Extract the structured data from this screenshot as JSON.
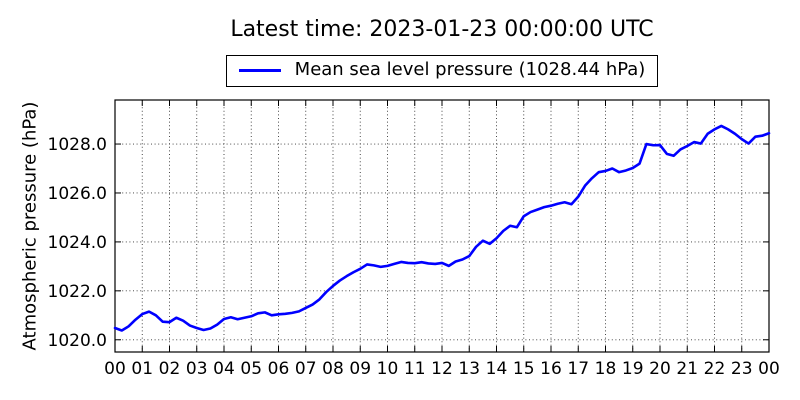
{
  "title": "Latest time: 2023-01-23 00:00:00 UTC",
  "legend": {
    "label": "Mean sea level pressure (1028.44 hPa)",
    "line_color": "#0000ff"
  },
  "latest_pressure_hpa": 1028.44,
  "chart_data": {
    "type": "line",
    "title": "Latest time: 2023-01-23 00:00:00 UTC",
    "xlabel": "",
    "ylabel": "Atmospheric pressure (hPa)",
    "xlim": [
      0,
      24
    ],
    "ylim": [
      1019.5,
      1029.8
    ],
    "grid": true,
    "grid_style": "dotted",
    "legend_position": "upper center above axes",
    "x_ticks": [
      0,
      1,
      2,
      3,
      4,
      5,
      6,
      7,
      8,
      9,
      10,
      11,
      12,
      13,
      14,
      15,
      16,
      17,
      18,
      19,
      20,
      21,
      22,
      23,
      24
    ],
    "x_tick_labels": [
      "00",
      "01",
      "02",
      "03",
      "04",
      "05",
      "06",
      "07",
      "08",
      "09",
      "10",
      "11",
      "12",
      "13",
      "14",
      "15",
      "16",
      "17",
      "18",
      "19",
      "20",
      "21",
      "22",
      "23",
      "00"
    ],
    "y_ticks": [
      1020,
      1022,
      1024,
      1026,
      1028
    ],
    "y_tick_labels": [
      "1020.0",
      "1022.0",
      "1024.0",
      "1026.0",
      "1028.0"
    ],
    "series": [
      {
        "name": "Mean sea level pressure (1028.44 hPa)",
        "color": "#0000ff",
        "line_width": 2.6,
        "x": [
          0,
          0.25,
          0.5,
          0.75,
          1,
          1.25,
          1.5,
          1.75,
          2,
          2.25,
          2.5,
          2.75,
          3,
          3.25,
          3.5,
          3.75,
          4,
          4.25,
          4.5,
          4.75,
          5,
          5.25,
          5.5,
          5.75,
          6,
          6.25,
          6.5,
          6.75,
          7,
          7.25,
          7.5,
          7.75,
          8,
          8.25,
          8.5,
          8.75,
          9,
          9.25,
          9.5,
          9.75,
          10,
          10.25,
          10.5,
          10.75,
          11,
          11.25,
          11.5,
          11.75,
          12,
          12.25,
          12.5,
          12.75,
          13,
          13.25,
          13.5,
          13.75,
          14,
          14.25,
          14.5,
          14.75,
          15,
          15.25,
          15.5,
          15.75,
          16,
          16.25,
          16.5,
          16.75,
          17,
          17.25,
          17.5,
          17.75,
          18,
          18.25,
          18.5,
          18.75,
          19,
          19.25,
          19.5,
          19.75,
          20,
          20.25,
          20.5,
          20.75,
          21,
          21.25,
          21.5,
          21.75,
          22,
          22.25,
          22.5,
          22.75,
          23,
          23.25,
          23.5,
          23.75,
          24
        ],
        "y": [
          1020.48,
          1020.38,
          1020.55,
          1020.82,
          1021.05,
          1021.15,
          1021.0,
          1020.74,
          1020.72,
          1020.9,
          1020.78,
          1020.58,
          1020.48,
          1020.4,
          1020.46,
          1020.62,
          1020.85,
          1020.92,
          1020.84,
          1020.9,
          1020.96,
          1021.08,
          1021.12,
          1021.0,
          1021.04,
          1021.06,
          1021.1,
          1021.16,
          1021.3,
          1021.44,
          1021.65,
          1021.95,
          1022.2,
          1022.42,
          1022.6,
          1022.76,
          1022.9,
          1023.08,
          1023.04,
          1022.98,
          1023.02,
          1023.1,
          1023.18,
          1023.14,
          1023.13,
          1023.17,
          1023.12,
          1023.1,
          1023.14,
          1023.02,
          1023.2,
          1023.28,
          1023.42,
          1023.8,
          1024.05,
          1023.92,
          1024.15,
          1024.45,
          1024.66,
          1024.6,
          1025.05,
          1025.22,
          1025.32,
          1025.42,
          1025.48,
          1025.56,
          1025.62,
          1025.54,
          1025.85,
          1026.3,
          1026.6,
          1026.85,
          1026.9,
          1027.0,
          1026.85,
          1026.92,
          1027.02,
          1027.2,
          1028.0,
          1027.95,
          1027.96,
          1027.6,
          1027.52,
          1027.78,
          1027.92,
          1028.08,
          1028.02,
          1028.42,
          1028.6,
          1028.74,
          1028.6,
          1028.42,
          1028.2,
          1028.02,
          1028.3,
          1028.34,
          1028.44
        ]
      }
    ]
  }
}
